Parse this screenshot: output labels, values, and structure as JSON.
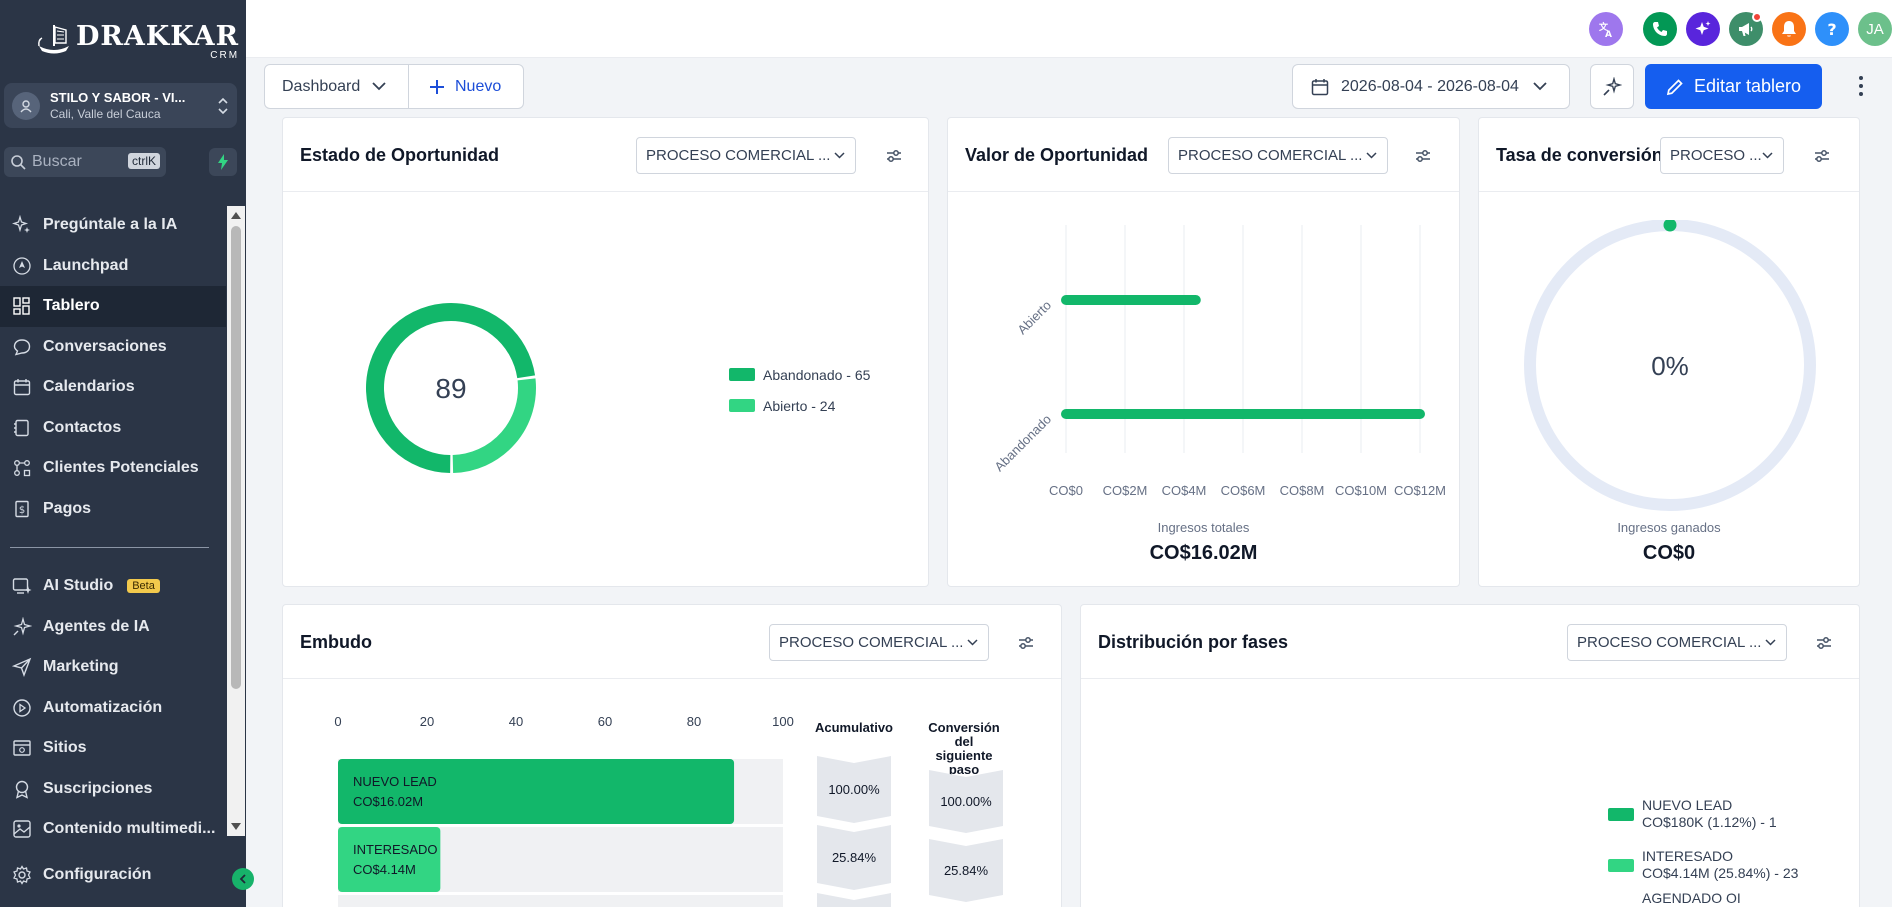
{
  "brand": {
    "name": "DRAKKAR",
    "sub": "CRM"
  },
  "account": {
    "name": "STILO Y SABOR - VI...",
    "location": "Cali, Valle del Cauca"
  },
  "search": {
    "label": "Buscar",
    "shortcut": "ctrlK"
  },
  "nav": [
    {
      "label": "Pregúntale a la IA",
      "icon": "sparkles-icon"
    },
    {
      "label": "Launchpad",
      "icon": "rocket-icon"
    },
    {
      "label": "Tablero",
      "icon": "grid-icon",
      "active": true
    },
    {
      "label": "Conversaciones",
      "icon": "chat-icon"
    },
    {
      "label": "Calendarios",
      "icon": "calendar-icon"
    },
    {
      "label": "Contactos",
      "icon": "contacts-icon"
    },
    {
      "label": "Clientes Potenciales",
      "icon": "pipeline-icon"
    },
    {
      "label": "Pagos",
      "icon": "payments-icon"
    }
  ],
  "nav2": [
    {
      "label": "AI Studio",
      "badge": "Beta",
      "icon": "ai-studio-icon"
    },
    {
      "label": "Agentes de IA",
      "icon": "agent-icon"
    },
    {
      "label": "Marketing",
      "icon": "send-icon"
    },
    {
      "label": "Automatización",
      "icon": "automation-icon"
    },
    {
      "label": "Sitios",
      "icon": "sites-icon"
    },
    {
      "label": "Suscripciones",
      "icon": "badge-icon"
    },
    {
      "label": "Contenido multimedi...",
      "icon": "media-icon"
    }
  ],
  "settings_label": "Configuración",
  "topbar": {
    "avatar_initials": "JA"
  },
  "toolbar": {
    "dashboard_label": "Dashboard",
    "new_label": "Nuevo",
    "date_range": "2026-08-04 - 2026-08-04",
    "edit_label": "Editar tablero"
  },
  "cards": {
    "estado": {
      "title": "Estado de Oportunidad",
      "select": "PROCESO COMERCIAL ...",
      "total": "89",
      "legend": [
        "Abandonado - 65",
        "Abierto - 24"
      ]
    },
    "valor": {
      "title": "Valor de Oportunidad",
      "select": "PROCESO COMERCIAL ...",
      "caption": "Ingresos totales",
      "total": "CO$16.02M"
    },
    "tasa": {
      "title": "Tasa de conversión",
      "select": "PROCESO ...",
      "value": "0%",
      "caption": "Ingresos ganados",
      "total": "CO$0"
    },
    "embudo": {
      "title": "Embudo",
      "select": "PROCESO COMERCIAL ...",
      "col_acumulativo": "Acumulativo",
      "col_conversion": [
        "Conversión",
        "del",
        "siguiente",
        "paso"
      ]
    },
    "distribucion": {
      "title": "Distribución por fases",
      "select": "PROCESO COMERCIAL ...",
      "legend": [
        {
          "name": "NUEVO LEAD",
          "value": "CO$180K (1.12%) - 1"
        },
        {
          "name": "INTERESADO",
          "value": "CO$4.14M (25.84%) - 23"
        },
        {
          "name": "AGENDADO OI",
          "value": ""
        }
      ]
    }
  },
  "colors": {
    "primary": "#155eef",
    "green_dark": "#12b76a",
    "green_light": "#32d583",
    "sidebar": "#2b3546"
  },
  "chart_data": [
    {
      "type": "pie",
      "title": "Estado de Oportunidad",
      "categories": [
        "Abandonado",
        "Abierto"
      ],
      "values": [
        65,
        24
      ],
      "center_label": "89",
      "legend": "right"
    },
    {
      "type": "bar",
      "orientation": "horizontal",
      "title": "Valor de Oportunidad",
      "categories": [
        "Abierto",
        "Abandonado"
      ],
      "values": [
        4400000,
        12000000
      ],
      "xlabel": "",
      "x_ticks": [
        "CO$0",
        "CO$2M",
        "CO$4M",
        "CO$6M",
        "CO$8M",
        "CO$10M",
        "CO$12M"
      ],
      "xlim": [
        0,
        12000000
      ],
      "grid": true
    },
    {
      "type": "pie",
      "title": "Tasa de conversión",
      "values": [
        0
      ],
      "center_label": "0%"
    },
    {
      "type": "bar",
      "orientation": "horizontal",
      "title": "Embudo",
      "categories": [
        "NUEVO LEAD",
        "INTERESADO"
      ],
      "category_amounts": [
        "CO$16.02M",
        "CO$4.14M"
      ],
      "values": [
        89,
        23
      ],
      "x_ticks": [
        "0",
        "20",
        "40",
        "60",
        "80",
        "100"
      ],
      "xlim": [
        0,
        100
      ],
      "cumulative": [
        "100.00%",
        "25.84%"
      ],
      "next_step_conversion": [
        "100.00%",
        "25.84%"
      ]
    }
  ]
}
